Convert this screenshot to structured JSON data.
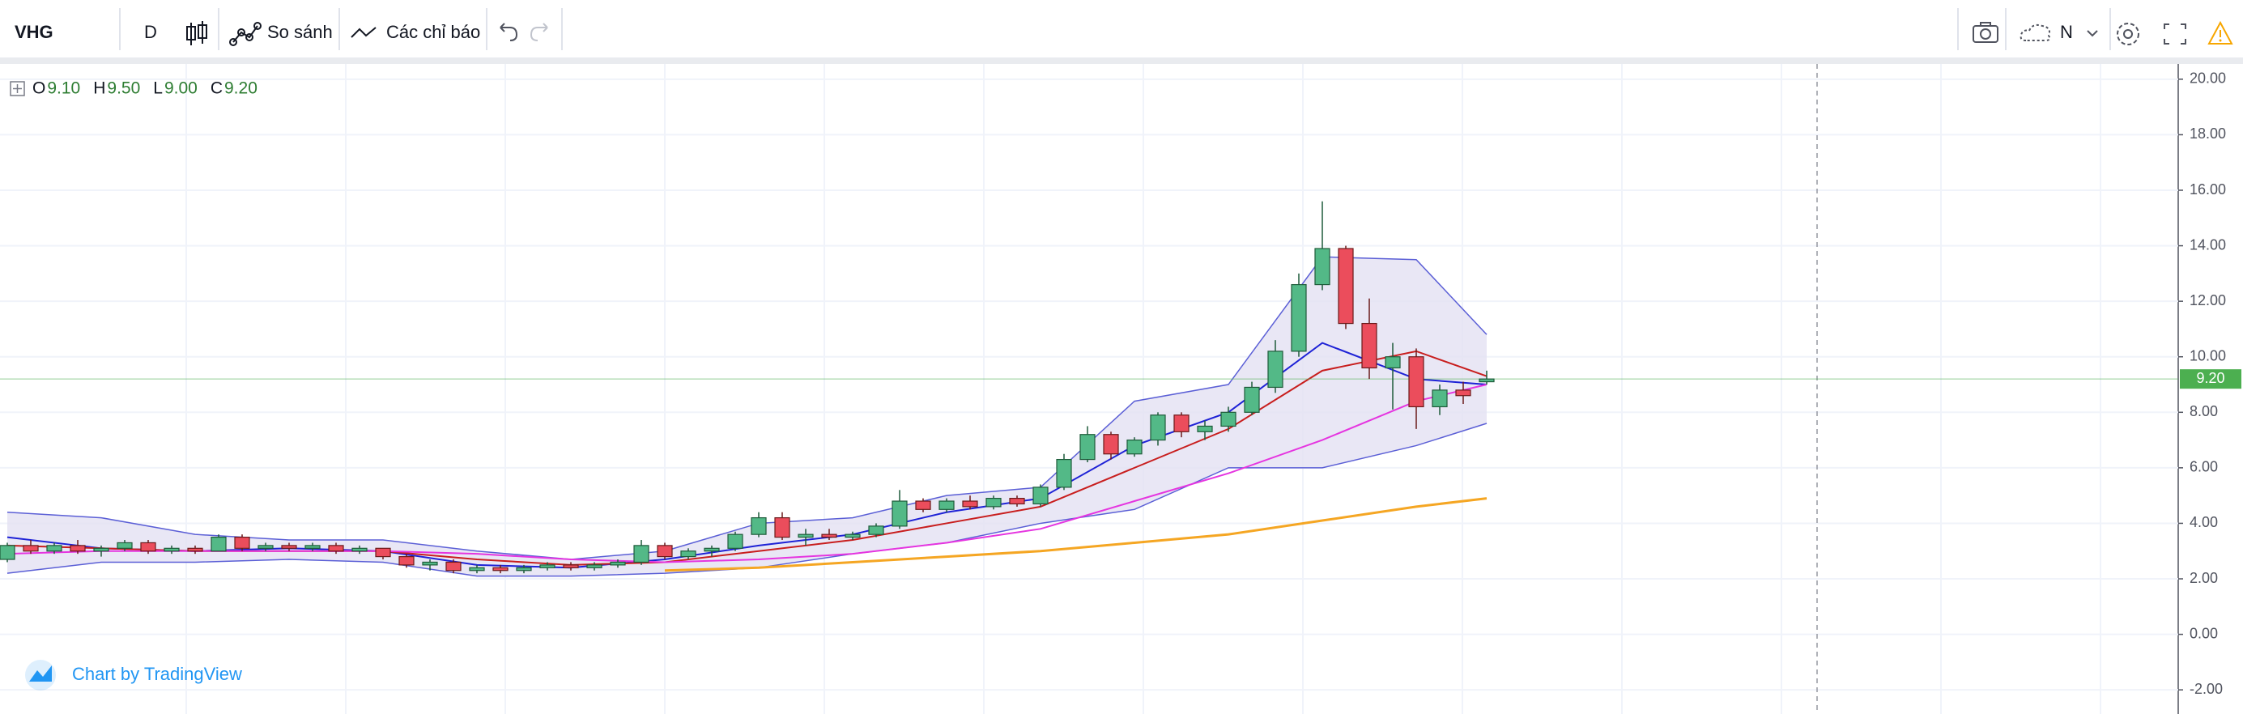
{
  "toolbar": {
    "symbol": "VHG",
    "interval": "D",
    "compare": "So sánh",
    "indicators": "Các chỉ báo",
    "drawing_mode": "N"
  },
  "footer": "Chart by TradingView",
  "chart_data": {
    "type": "candlestick",
    "legend": [
      {
        "key": "O",
        "value": "9.10"
      },
      {
        "key": "H",
        "value": "9.50"
      },
      {
        "key": "L",
        "value": "9.00"
      },
      {
        "key": "C",
        "value": "9.20"
      }
    ],
    "up_color": "#53b987",
    "down_color": "#eb4d5c",
    "up_border": "#1e5b3a",
    "down_border": "#6b1a1a",
    "candles": [
      [
        2.7,
        3.3,
        2.6,
        3.2
      ],
      [
        3.2,
        3.4,
        2.9,
        3.0
      ],
      [
        3.0,
        3.3,
        2.9,
        3.2
      ],
      [
        3.2,
        3.4,
        2.9,
        3.0
      ],
      [
        3.0,
        3.2,
        2.8,
        3.1
      ],
      [
        3.1,
        3.4,
        3.0,
        3.3
      ],
      [
        3.3,
        3.4,
        2.9,
        3.0
      ],
      [
        3.0,
        3.2,
        2.9,
        3.1
      ],
      [
        3.1,
        3.2,
        2.9,
        3.0
      ],
      [
        3.0,
        3.6,
        3.0,
        3.5
      ],
      [
        3.5,
        3.6,
        3.0,
        3.1
      ],
      [
        3.1,
        3.3,
        3.0,
        3.2
      ],
      [
        3.2,
        3.3,
        3.0,
        3.1
      ],
      [
        3.1,
        3.3,
        3.0,
        3.2
      ],
      [
        3.2,
        3.3,
        2.9,
        3.0
      ],
      [
        3.0,
        3.2,
        2.9,
        3.1
      ],
      [
        3.1,
        3.1,
        2.7,
        2.8
      ],
      [
        2.8,
        2.9,
        2.4,
        2.5
      ],
      [
        2.5,
        2.7,
        2.3,
        2.6
      ],
      [
        2.6,
        2.7,
        2.2,
        2.3
      ],
      [
        2.3,
        2.5,
        2.2,
        2.4
      ],
      [
        2.4,
        2.5,
        2.2,
        2.3
      ],
      [
        2.3,
        2.5,
        2.2,
        2.4
      ],
      [
        2.4,
        2.6,
        2.3,
        2.5
      ],
      [
        2.5,
        2.6,
        2.3,
        2.4
      ],
      [
        2.4,
        2.6,
        2.3,
        2.5
      ],
      [
        2.5,
        2.7,
        2.4,
        2.6
      ],
      [
        2.6,
        3.4,
        2.5,
        3.2
      ],
      [
        3.2,
        3.3,
        2.7,
        2.8
      ],
      [
        2.8,
        3.1,
        2.7,
        3.0
      ],
      [
        3.0,
        3.2,
        2.8,
        3.1
      ],
      [
        3.1,
        3.7,
        3.0,
        3.6
      ],
      [
        3.6,
        4.4,
        3.5,
        4.2
      ],
      [
        4.2,
        4.4,
        3.4,
        3.5
      ],
      [
        3.5,
        3.8,
        3.2,
        3.6
      ],
      [
        3.6,
        3.8,
        3.4,
        3.5
      ],
      [
        3.5,
        3.7,
        3.4,
        3.6
      ],
      [
        3.6,
        4.0,
        3.5,
        3.9
      ],
      [
        3.9,
        5.2,
        3.8,
        4.8
      ],
      [
        4.8,
        4.9,
        4.4,
        4.5
      ],
      [
        4.5,
        4.9,
        4.4,
        4.8
      ],
      [
        4.8,
        5.0,
        4.5,
        4.6
      ],
      [
        4.6,
        5.0,
        4.5,
        4.9
      ],
      [
        4.9,
        5.0,
        4.6,
        4.7
      ],
      [
        4.7,
        5.4,
        4.6,
        5.3
      ],
      [
        5.3,
        6.5,
        5.2,
        6.3
      ],
      [
        6.3,
        7.5,
        6.2,
        7.2
      ],
      [
        7.2,
        7.3,
        6.3,
        6.5
      ],
      [
        6.5,
        7.1,
        6.4,
        7.0
      ],
      [
        7.0,
        8.0,
        6.8,
        7.9
      ],
      [
        7.9,
        8.0,
        7.1,
        7.3
      ],
      [
        7.3,
        7.7,
        7.0,
        7.5
      ],
      [
        7.5,
        8.2,
        7.3,
        8.0
      ],
      [
        8.0,
        9.1,
        7.9,
        8.9
      ],
      [
        8.9,
        10.6,
        8.7,
        10.2
      ],
      [
        10.2,
        13.0,
        10.0,
        12.6
      ],
      [
        12.6,
        15.6,
        12.4,
        13.9
      ],
      [
        13.9,
        14.0,
        11.0,
        11.2
      ],
      [
        11.2,
        12.1,
        9.2,
        9.6
      ],
      [
        9.6,
        10.5,
        8.1,
        10.0
      ],
      [
        10.0,
        10.3,
        7.4,
        8.2
      ],
      [
        8.2,
        9.0,
        7.9,
        8.8
      ],
      [
        8.8,
        9.1,
        8.3,
        8.6
      ],
      [
        9.1,
        9.5,
        9.0,
        9.2
      ]
    ],
    "overlay_x": [
      0,
      4,
      8,
      12,
      16,
      20,
      24,
      28,
      32,
      36,
      40,
      44,
      48,
      52,
      56,
      60,
      63
    ],
    "band": {
      "color": "#5b5fd6",
      "fill": "#e3e1f3",
      "upper": [
        4.4,
        4.2,
        3.6,
        3.4,
        3.4,
        3.0,
        2.7,
        3.0,
        4.0,
        4.2,
        5.0,
        5.3,
        8.4,
        9.0,
        13.6,
        13.5,
        10.8
      ],
      "lower": [
        2.2,
        2.6,
        2.6,
        2.7,
        2.6,
        2.1,
        2.1,
        2.2,
        2.4,
        2.9,
        3.3,
        4.0,
        4.5,
        6.0,
        6.0,
        6.8,
        7.6
      ]
    },
    "overlays": [
      {
        "color": "#1e22d6",
        "values": [
          3.5,
          3.1,
          3.0,
          3.1,
          3.0,
          2.5,
          2.4,
          2.7,
          3.2,
          3.6,
          4.4,
          4.9,
          6.8,
          8.0,
          10.5,
          9.2,
          9.0
        ]
      },
      {
        "color": "#c81e1e",
        "values": [
          3.2,
          3.1,
          3.0,
          3.0,
          3.0,
          2.7,
          2.5,
          2.6,
          3.0,
          3.4,
          4.0,
          4.6,
          6.0,
          7.4,
          9.5,
          10.2,
          9.3
        ]
      },
      {
        "color": "#e535e0",
        "values": [
          2.9,
          3.0,
          3.0,
          3.0,
          3.0,
          2.9,
          2.7,
          2.6,
          2.7,
          2.9,
          3.3,
          3.8,
          4.8,
          5.8,
          7.0,
          8.4,
          9.0
        ]
      },
      {
        "color": "#f5a623",
        "values": [
          null,
          null,
          null,
          null,
          null,
          null,
          null,
          2.3,
          2.4,
          2.6,
          2.8,
          3.0,
          3.3,
          3.6,
          4.1,
          4.6,
          4.9
        ]
      }
    ],
    "last_price": {
      "value": 9.2,
      "label": "9.20",
      "color": "#4caf50"
    },
    "ylim": [
      -2.87,
      20.55
    ],
    "yticks": [
      {
        "value": 20,
        "label": "20.00"
      },
      {
        "value": 18,
        "label": "18.00"
      },
      {
        "value": 16,
        "label": "16.00"
      },
      {
        "value": 14,
        "label": "14.00"
      },
      {
        "value": 12,
        "label": "12.00"
      },
      {
        "value": 10,
        "label": "10.00"
      },
      {
        "value": 8,
        "label": "8.00"
      },
      {
        "value": 6,
        "label": "6.00"
      },
      {
        "value": 4,
        "label": "4.00"
      },
      {
        "value": 2,
        "label": "2.00"
      },
      {
        "value": 0,
        "label": "0.00"
      },
      {
        "value": -2,
        "label": "-2.00"
      }
    ],
    "grid": true
  }
}
